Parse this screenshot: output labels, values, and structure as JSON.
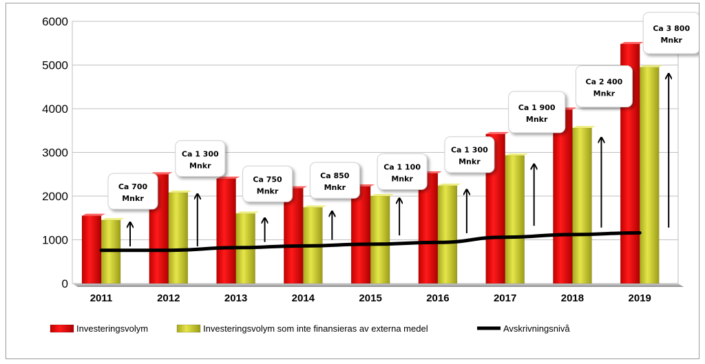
{
  "chart_data": {
    "type": "bar",
    "categories": [
      "2011",
      "2012",
      "2013",
      "2014",
      "2015",
      "2016",
      "2017",
      "2018",
      "2019"
    ],
    "series": [
      {
        "name": "Investeringsvolym",
        "type": "bar",
        "color": "#ff0000",
        "values": [
          1550,
          2500,
          2400,
          2180,
          2220,
          2520,
          3420,
          3980,
          5480
        ]
      },
      {
        "name": "Investeringsvolym som inte finansieras av externa medel",
        "type": "bar",
        "color": "#d6d631",
        "values": [
          1450,
          2080,
          1600,
          1740,
          2000,
          2240,
          2930,
          3560,
          4950
        ]
      },
      {
        "name": "Avskrivningsnivå",
        "type": "line",
        "color": "#000000",
        "values": [
          760,
          760,
          820,
          860,
          900,
          940,
          1060,
          1120,
          1160
        ]
      }
    ],
    "annotations": [
      {
        "category": "2011",
        "line1": "Ca 700",
        "line2": "Mnkr"
      },
      {
        "category": "2012",
        "line1": "Ca 1 300",
        "line2": "Mnkr"
      },
      {
        "category": "2013",
        "line1": "Ca 750",
        "line2": "Mnkr"
      },
      {
        "category": "2014",
        "line1": "Ca 850",
        "line2": "Mnkr"
      },
      {
        "category": "2015",
        "line1": "Ca 1 100",
        "line2": "Mnkr"
      },
      {
        "category": "2016",
        "line1": "Ca 1 300",
        "line2": "Mnkr"
      },
      {
        "category": "2017",
        "line1": "Ca 1 900",
        "line2": "Mnkr"
      },
      {
        "category": "2018",
        "line1": "Ca 2 400",
        "line2": "Mnkr"
      },
      {
        "category": "2019",
        "line1": "Ca 3 800",
        "line2": "Mnkr"
      }
    ],
    "ylim": [
      0,
      6000
    ],
    "yticks": [
      0,
      1000,
      2000,
      3000,
      4000,
      5000,
      6000
    ],
    "title": "",
    "xlabel": "",
    "ylabel": "",
    "grid": true,
    "legend_position": "bottom"
  }
}
